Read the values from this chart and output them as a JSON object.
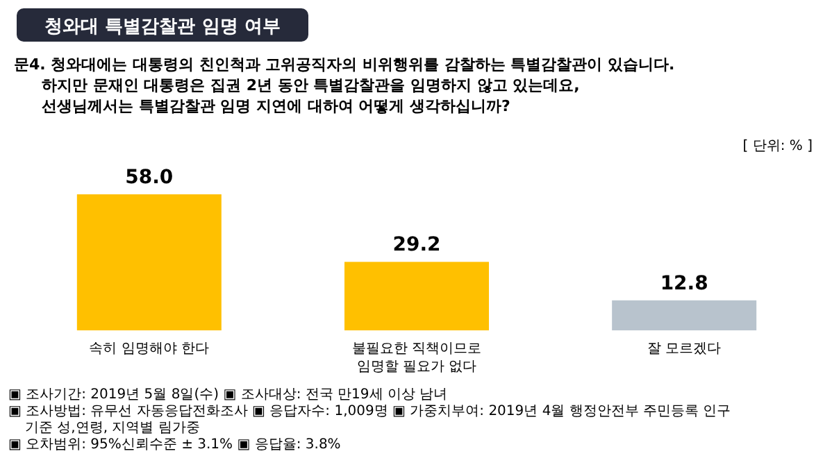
{
  "chart_data": {
    "type": "bar",
    "title": "청와대 특별감찰관 임명 여부",
    "subtitle": "문4. 청와대에는 대통령의 친인척과 고위공직자의 비위행위를 감찰하는 특별감찰관이 있습니다.\n하지만 문재인 대통령은 집권 2년 동안 특별감찰관을 임명하지 않고 있는데요,\n선생님께서는 특별감찰관 임명 지연에 대하여 어떻게 생각하십니까?",
    "categories": [
      "속히 임명해야 한다",
      "불필요한 직책이므로\n임명할 필요가 없다",
      "잘 모르겠다"
    ],
    "values": [
      58.0,
      29.2,
      12.8
    ],
    "value_labels": [
      "58.0",
      "29.2",
      "12.8"
    ],
    "colors": [
      "#ffc000",
      "#ffc000",
      "#b8c3cd"
    ],
    "annotations": [
      "[ 단위: % ]",
      "▣ 조사기간: 2019년 5월 8일(수) ▣ 조사대상: 전국 만19세 이상 남녀",
      "▣ 조사방법: 유무선 자동응답전화조사 ▣ 응답자수: 1,009명 ▣ 가중치부여: 2019년 4월 행정안전부 주민등록 인구 기준 성,연령, 지역별 림가중",
      "▣ 오차범위: 95%신뢰수준 ± 3.1% ▣ 응답율: 3.8%"
    ]
  }
}
